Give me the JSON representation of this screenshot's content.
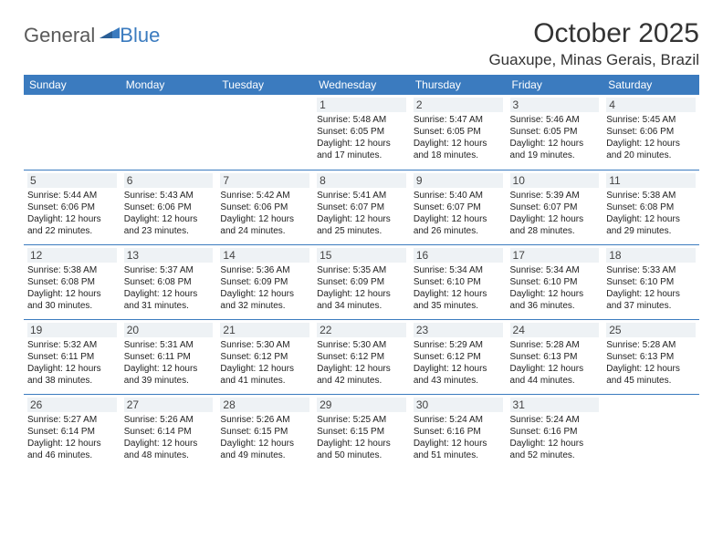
{
  "brand": {
    "part1": "General",
    "part2": "Blue"
  },
  "title": "October 2025",
  "location": "Guaxupe, Minas Gerais, Brazil",
  "colors": {
    "header_bg": "#3b7bbf",
    "header_text": "#ffffff",
    "row_border": "#3b7bbf",
    "daynum_bg": "#eef2f5",
    "text": "#222222",
    "logo_gray": "#5a5a5a",
    "logo_blue": "#3b7bbf"
  },
  "typography": {
    "title_fontsize": 30,
    "location_fontsize": 17,
    "dayheader_fontsize": 12,
    "daynum_fontsize": 12,
    "cell_fontsize": 10
  },
  "days_of_week": [
    "Sunday",
    "Monday",
    "Tuesday",
    "Wednesday",
    "Thursday",
    "Friday",
    "Saturday"
  ],
  "weeks": [
    [
      {
        "empty": true
      },
      {
        "empty": true
      },
      {
        "empty": true
      },
      {
        "day": "1",
        "sunrise": "Sunrise: 5:48 AM",
        "sunset": "Sunset: 6:05 PM",
        "dl1": "Daylight: 12 hours",
        "dl2": "and 17 minutes."
      },
      {
        "day": "2",
        "sunrise": "Sunrise: 5:47 AM",
        "sunset": "Sunset: 6:05 PM",
        "dl1": "Daylight: 12 hours",
        "dl2": "and 18 minutes."
      },
      {
        "day": "3",
        "sunrise": "Sunrise: 5:46 AM",
        "sunset": "Sunset: 6:05 PM",
        "dl1": "Daylight: 12 hours",
        "dl2": "and 19 minutes."
      },
      {
        "day": "4",
        "sunrise": "Sunrise: 5:45 AM",
        "sunset": "Sunset: 6:06 PM",
        "dl1": "Daylight: 12 hours",
        "dl2": "and 20 minutes."
      }
    ],
    [
      {
        "day": "5",
        "sunrise": "Sunrise: 5:44 AM",
        "sunset": "Sunset: 6:06 PM",
        "dl1": "Daylight: 12 hours",
        "dl2": "and 22 minutes."
      },
      {
        "day": "6",
        "sunrise": "Sunrise: 5:43 AM",
        "sunset": "Sunset: 6:06 PM",
        "dl1": "Daylight: 12 hours",
        "dl2": "and 23 minutes."
      },
      {
        "day": "7",
        "sunrise": "Sunrise: 5:42 AM",
        "sunset": "Sunset: 6:06 PM",
        "dl1": "Daylight: 12 hours",
        "dl2": "and 24 minutes."
      },
      {
        "day": "8",
        "sunrise": "Sunrise: 5:41 AM",
        "sunset": "Sunset: 6:07 PM",
        "dl1": "Daylight: 12 hours",
        "dl2": "and 25 minutes."
      },
      {
        "day": "9",
        "sunrise": "Sunrise: 5:40 AM",
        "sunset": "Sunset: 6:07 PM",
        "dl1": "Daylight: 12 hours",
        "dl2": "and 26 minutes."
      },
      {
        "day": "10",
        "sunrise": "Sunrise: 5:39 AM",
        "sunset": "Sunset: 6:07 PM",
        "dl1": "Daylight: 12 hours",
        "dl2": "and 28 minutes."
      },
      {
        "day": "11",
        "sunrise": "Sunrise: 5:38 AM",
        "sunset": "Sunset: 6:08 PM",
        "dl1": "Daylight: 12 hours",
        "dl2": "and 29 minutes."
      }
    ],
    [
      {
        "day": "12",
        "sunrise": "Sunrise: 5:38 AM",
        "sunset": "Sunset: 6:08 PM",
        "dl1": "Daylight: 12 hours",
        "dl2": "and 30 minutes."
      },
      {
        "day": "13",
        "sunrise": "Sunrise: 5:37 AM",
        "sunset": "Sunset: 6:08 PM",
        "dl1": "Daylight: 12 hours",
        "dl2": "and 31 minutes."
      },
      {
        "day": "14",
        "sunrise": "Sunrise: 5:36 AM",
        "sunset": "Sunset: 6:09 PM",
        "dl1": "Daylight: 12 hours",
        "dl2": "and 32 minutes."
      },
      {
        "day": "15",
        "sunrise": "Sunrise: 5:35 AM",
        "sunset": "Sunset: 6:09 PM",
        "dl1": "Daylight: 12 hours",
        "dl2": "and 34 minutes."
      },
      {
        "day": "16",
        "sunrise": "Sunrise: 5:34 AM",
        "sunset": "Sunset: 6:10 PM",
        "dl1": "Daylight: 12 hours",
        "dl2": "and 35 minutes."
      },
      {
        "day": "17",
        "sunrise": "Sunrise: 5:34 AM",
        "sunset": "Sunset: 6:10 PM",
        "dl1": "Daylight: 12 hours",
        "dl2": "and 36 minutes."
      },
      {
        "day": "18",
        "sunrise": "Sunrise: 5:33 AM",
        "sunset": "Sunset: 6:10 PM",
        "dl1": "Daylight: 12 hours",
        "dl2": "and 37 minutes."
      }
    ],
    [
      {
        "day": "19",
        "sunrise": "Sunrise: 5:32 AM",
        "sunset": "Sunset: 6:11 PM",
        "dl1": "Daylight: 12 hours",
        "dl2": "and 38 minutes."
      },
      {
        "day": "20",
        "sunrise": "Sunrise: 5:31 AM",
        "sunset": "Sunset: 6:11 PM",
        "dl1": "Daylight: 12 hours",
        "dl2": "and 39 minutes."
      },
      {
        "day": "21",
        "sunrise": "Sunrise: 5:30 AM",
        "sunset": "Sunset: 6:12 PM",
        "dl1": "Daylight: 12 hours",
        "dl2": "and 41 minutes."
      },
      {
        "day": "22",
        "sunrise": "Sunrise: 5:30 AM",
        "sunset": "Sunset: 6:12 PM",
        "dl1": "Daylight: 12 hours",
        "dl2": "and 42 minutes."
      },
      {
        "day": "23",
        "sunrise": "Sunrise: 5:29 AM",
        "sunset": "Sunset: 6:12 PM",
        "dl1": "Daylight: 12 hours",
        "dl2": "and 43 minutes."
      },
      {
        "day": "24",
        "sunrise": "Sunrise: 5:28 AM",
        "sunset": "Sunset: 6:13 PM",
        "dl1": "Daylight: 12 hours",
        "dl2": "and 44 minutes."
      },
      {
        "day": "25",
        "sunrise": "Sunrise: 5:28 AM",
        "sunset": "Sunset: 6:13 PM",
        "dl1": "Daylight: 12 hours",
        "dl2": "and 45 minutes."
      }
    ],
    [
      {
        "day": "26",
        "sunrise": "Sunrise: 5:27 AM",
        "sunset": "Sunset: 6:14 PM",
        "dl1": "Daylight: 12 hours",
        "dl2": "and 46 minutes."
      },
      {
        "day": "27",
        "sunrise": "Sunrise: 5:26 AM",
        "sunset": "Sunset: 6:14 PM",
        "dl1": "Daylight: 12 hours",
        "dl2": "and 48 minutes."
      },
      {
        "day": "28",
        "sunrise": "Sunrise: 5:26 AM",
        "sunset": "Sunset: 6:15 PM",
        "dl1": "Daylight: 12 hours",
        "dl2": "and 49 minutes."
      },
      {
        "day": "29",
        "sunrise": "Sunrise: 5:25 AM",
        "sunset": "Sunset: 6:15 PM",
        "dl1": "Daylight: 12 hours",
        "dl2": "and 50 minutes."
      },
      {
        "day": "30",
        "sunrise": "Sunrise: 5:24 AM",
        "sunset": "Sunset: 6:16 PM",
        "dl1": "Daylight: 12 hours",
        "dl2": "and 51 minutes."
      },
      {
        "day": "31",
        "sunrise": "Sunrise: 5:24 AM",
        "sunset": "Sunset: 6:16 PM",
        "dl1": "Daylight: 12 hours",
        "dl2": "and 52 minutes."
      },
      {
        "empty": true
      }
    ]
  ]
}
